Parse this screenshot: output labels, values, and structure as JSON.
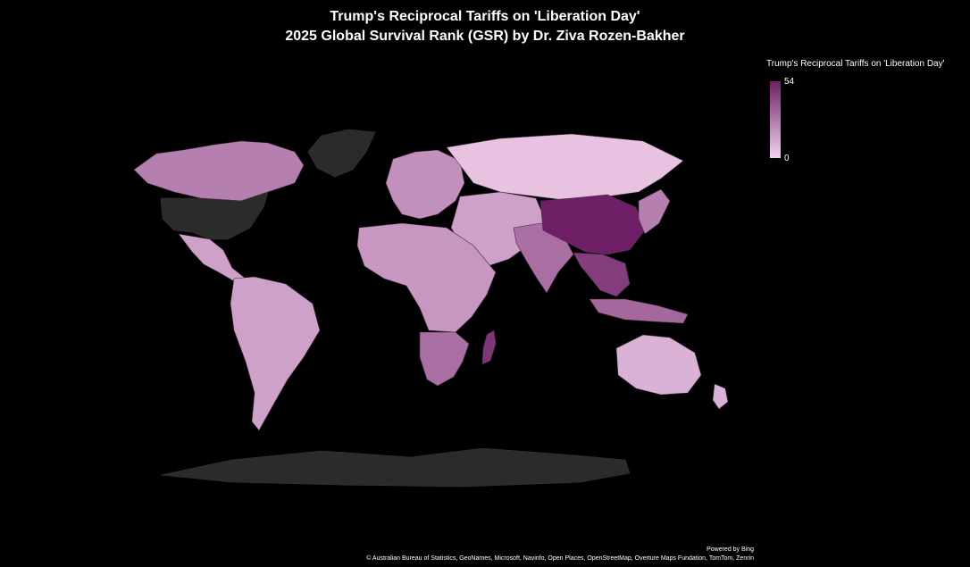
{
  "title": {
    "line1": "Trump's Reciprocal Tariffs on 'Liberation Day'",
    "line2": "2025 Global Survival Rank (GSR) by Dr. Ziva Rozen-Bakher"
  },
  "legend": {
    "title": "Trump's Reciprocal Tariffs on 'Liberation Day'",
    "max_label": "54",
    "min_label": "0",
    "color_low": "#f3d3ee",
    "color_high": "#6e1f66"
  },
  "colors": {
    "background": "#000000",
    "no_data": "#2b2b2b"
  },
  "footer": {
    "powered_by": "Powered by Bing",
    "attribution": "© Australian Bureau of Statistics, GeoNames, Microsoft, Navinfo, Open Places, OpenStreetMap, Overture Maps Fundation, TomTom, Zenrin"
  },
  "chart_data": {
    "type": "choropleth",
    "value_range": [
      0,
      54
    ],
    "regions": [
      {
        "id": "north-america-canada",
        "value": 25
      },
      {
        "id": "united-states",
        "value": null
      },
      {
        "id": "mexico-central-america",
        "value": 15
      },
      {
        "id": "greenland",
        "value": null
      },
      {
        "id": "south-america",
        "value": 15
      },
      {
        "id": "europe",
        "value": 20
      },
      {
        "id": "russia",
        "value": 5
      },
      {
        "id": "middle-east-central-asia",
        "value": 15
      },
      {
        "id": "africa",
        "value": 18
      },
      {
        "id": "southern-africa",
        "value": 30
      },
      {
        "id": "madagascar",
        "value": 47
      },
      {
        "id": "india-south-asia",
        "value": 30
      },
      {
        "id": "china",
        "value": 54
      },
      {
        "id": "southeast-asia",
        "value": 45
      },
      {
        "id": "japan-korea",
        "value": 25
      },
      {
        "id": "indonesia",
        "value": 32
      },
      {
        "id": "australia",
        "value": 10
      },
      {
        "id": "new-zealand",
        "value": 10
      },
      {
        "id": "antarctica",
        "value": null
      }
    ]
  }
}
